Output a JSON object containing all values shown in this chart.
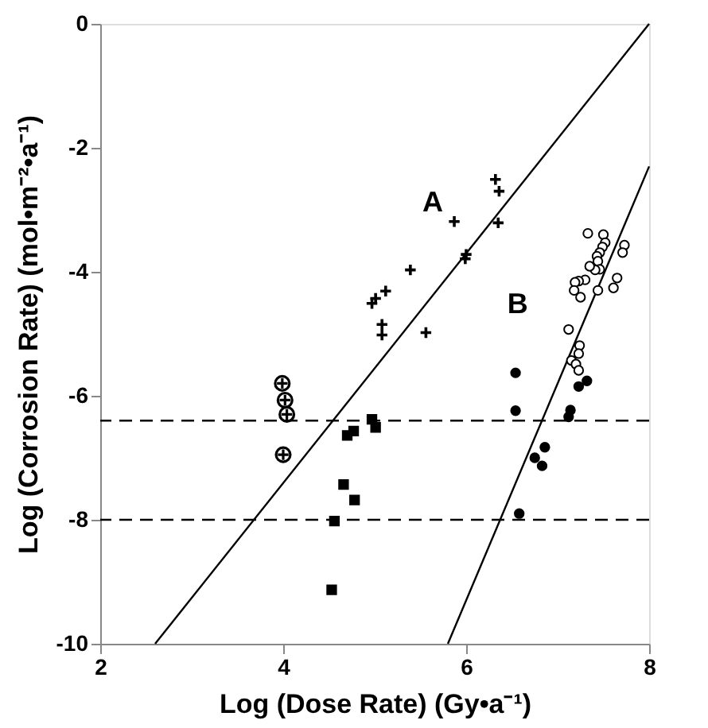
{
  "chart_data": {
    "type": "scatter",
    "xlabel": "Log (Dose Rate) (Gy•a⁻¹)",
    "ylabel": "Log (Corrosion Rate) (mol•m⁻²•a⁻¹)",
    "xlim": [
      2,
      8
    ],
    "ylim": [
      -10,
      0
    ],
    "xticks": [
      2,
      4,
      6,
      8
    ],
    "yticks": [
      -10,
      -8,
      -6,
      -4,
      -2,
      0
    ],
    "grid": false,
    "series": [
      {
        "type": "line",
        "color": "#000000",
        "marker": "none",
        "line_style": "solid",
        "x": [
          2.6,
          8
        ],
        "values": [
          -10,
          0
        ]
      },
      {
        "type": "line",
        "color": "#000000",
        "marker": "none",
        "line_style": "solid",
        "x": [
          5.8,
          8
        ],
        "values": [
          -10,
          -2.3
        ]
      },
      {
        "color": "#000000",
        "marker": "cross",
        "x": [
          6.32,
          6.36,
          5.87,
          6.35,
          6.0,
          5.99,
          5.39,
          5.12,
          5.01,
          4.97,
          5.08,
          5.08,
          5.56
        ],
        "values": [
          -2.51,
          -2.7,
          -3.19,
          -3.21,
          -3.72,
          -3.79,
          -3.97,
          -4.31,
          -4.43,
          -4.51,
          -4.85,
          -5.02,
          -4.98
        ]
      },
      {
        "color": "#ffffff",
        "marker": "cross",
        "x": [
          3.99,
          4.02,
          4.04,
          4.0
        ],
        "values": [
          -5.8,
          -6.07,
          -6.3,
          -6.95
        ]
      },
      {
        "color": "#000000",
        "marker": "square",
        "x": [
          4.97,
          5.01,
          4.77,
          4.7,
          4.66,
          4.78,
          4.56,
          4.53
        ],
        "values": [
          -6.38,
          -6.51,
          -6.57,
          -6.64,
          -7.43,
          -7.68,
          -8.02,
          -9.13
        ]
      },
      {
        "color": "#000000",
        "marker": "circle",
        "x": [
          6.54,
          6.54,
          7.32,
          7.23,
          7.14,
          7.12,
          6.86,
          6.75,
          6.83,
          6.58
        ],
        "values": [
          -5.63,
          -6.24,
          -5.76,
          -5.85,
          -6.23,
          -6.34,
          -6.83,
          -7.0,
          -7.13,
          -7.9
        ]
      },
      {
        "color": "#ffffff",
        "marker": "circle",
        "x": [
          7.33,
          7.5,
          7.52,
          7.49,
          7.73,
          7.71,
          7.46,
          7.43,
          7.44,
          7.46,
          7.41,
          7.35,
          7.3,
          7.23,
          7.19,
          7.65,
          7.61,
          7.44,
          7.18,
          7.25,
          7.12,
          7.24,
          7.23,
          7.15,
          7.2,
          7.23
        ],
        "values": [
          -3.38,
          -3.4,
          -3.53,
          -3.6,
          -3.57,
          -3.69,
          -3.69,
          -3.75,
          -3.83,
          -3.96,
          -3.97,
          -3.91,
          -4.13,
          -4.15,
          -4.17,
          -4.1,
          -4.26,
          -4.3,
          -4.3,
          -4.41,
          -4.93,
          -5.19,
          -5.32,
          -5.43,
          -5.49,
          -5.59
        ]
      }
    ],
    "ref_lines": [
      {
        "axis": "y",
        "value": -6.4,
        "line_style": "dashed",
        "color": "#000000"
      },
      {
        "axis": "y",
        "value": -8,
        "line_style": "dashed",
        "color": "#000000"
      }
    ],
    "annotations": [
      "A",
      "B"
    ]
  }
}
